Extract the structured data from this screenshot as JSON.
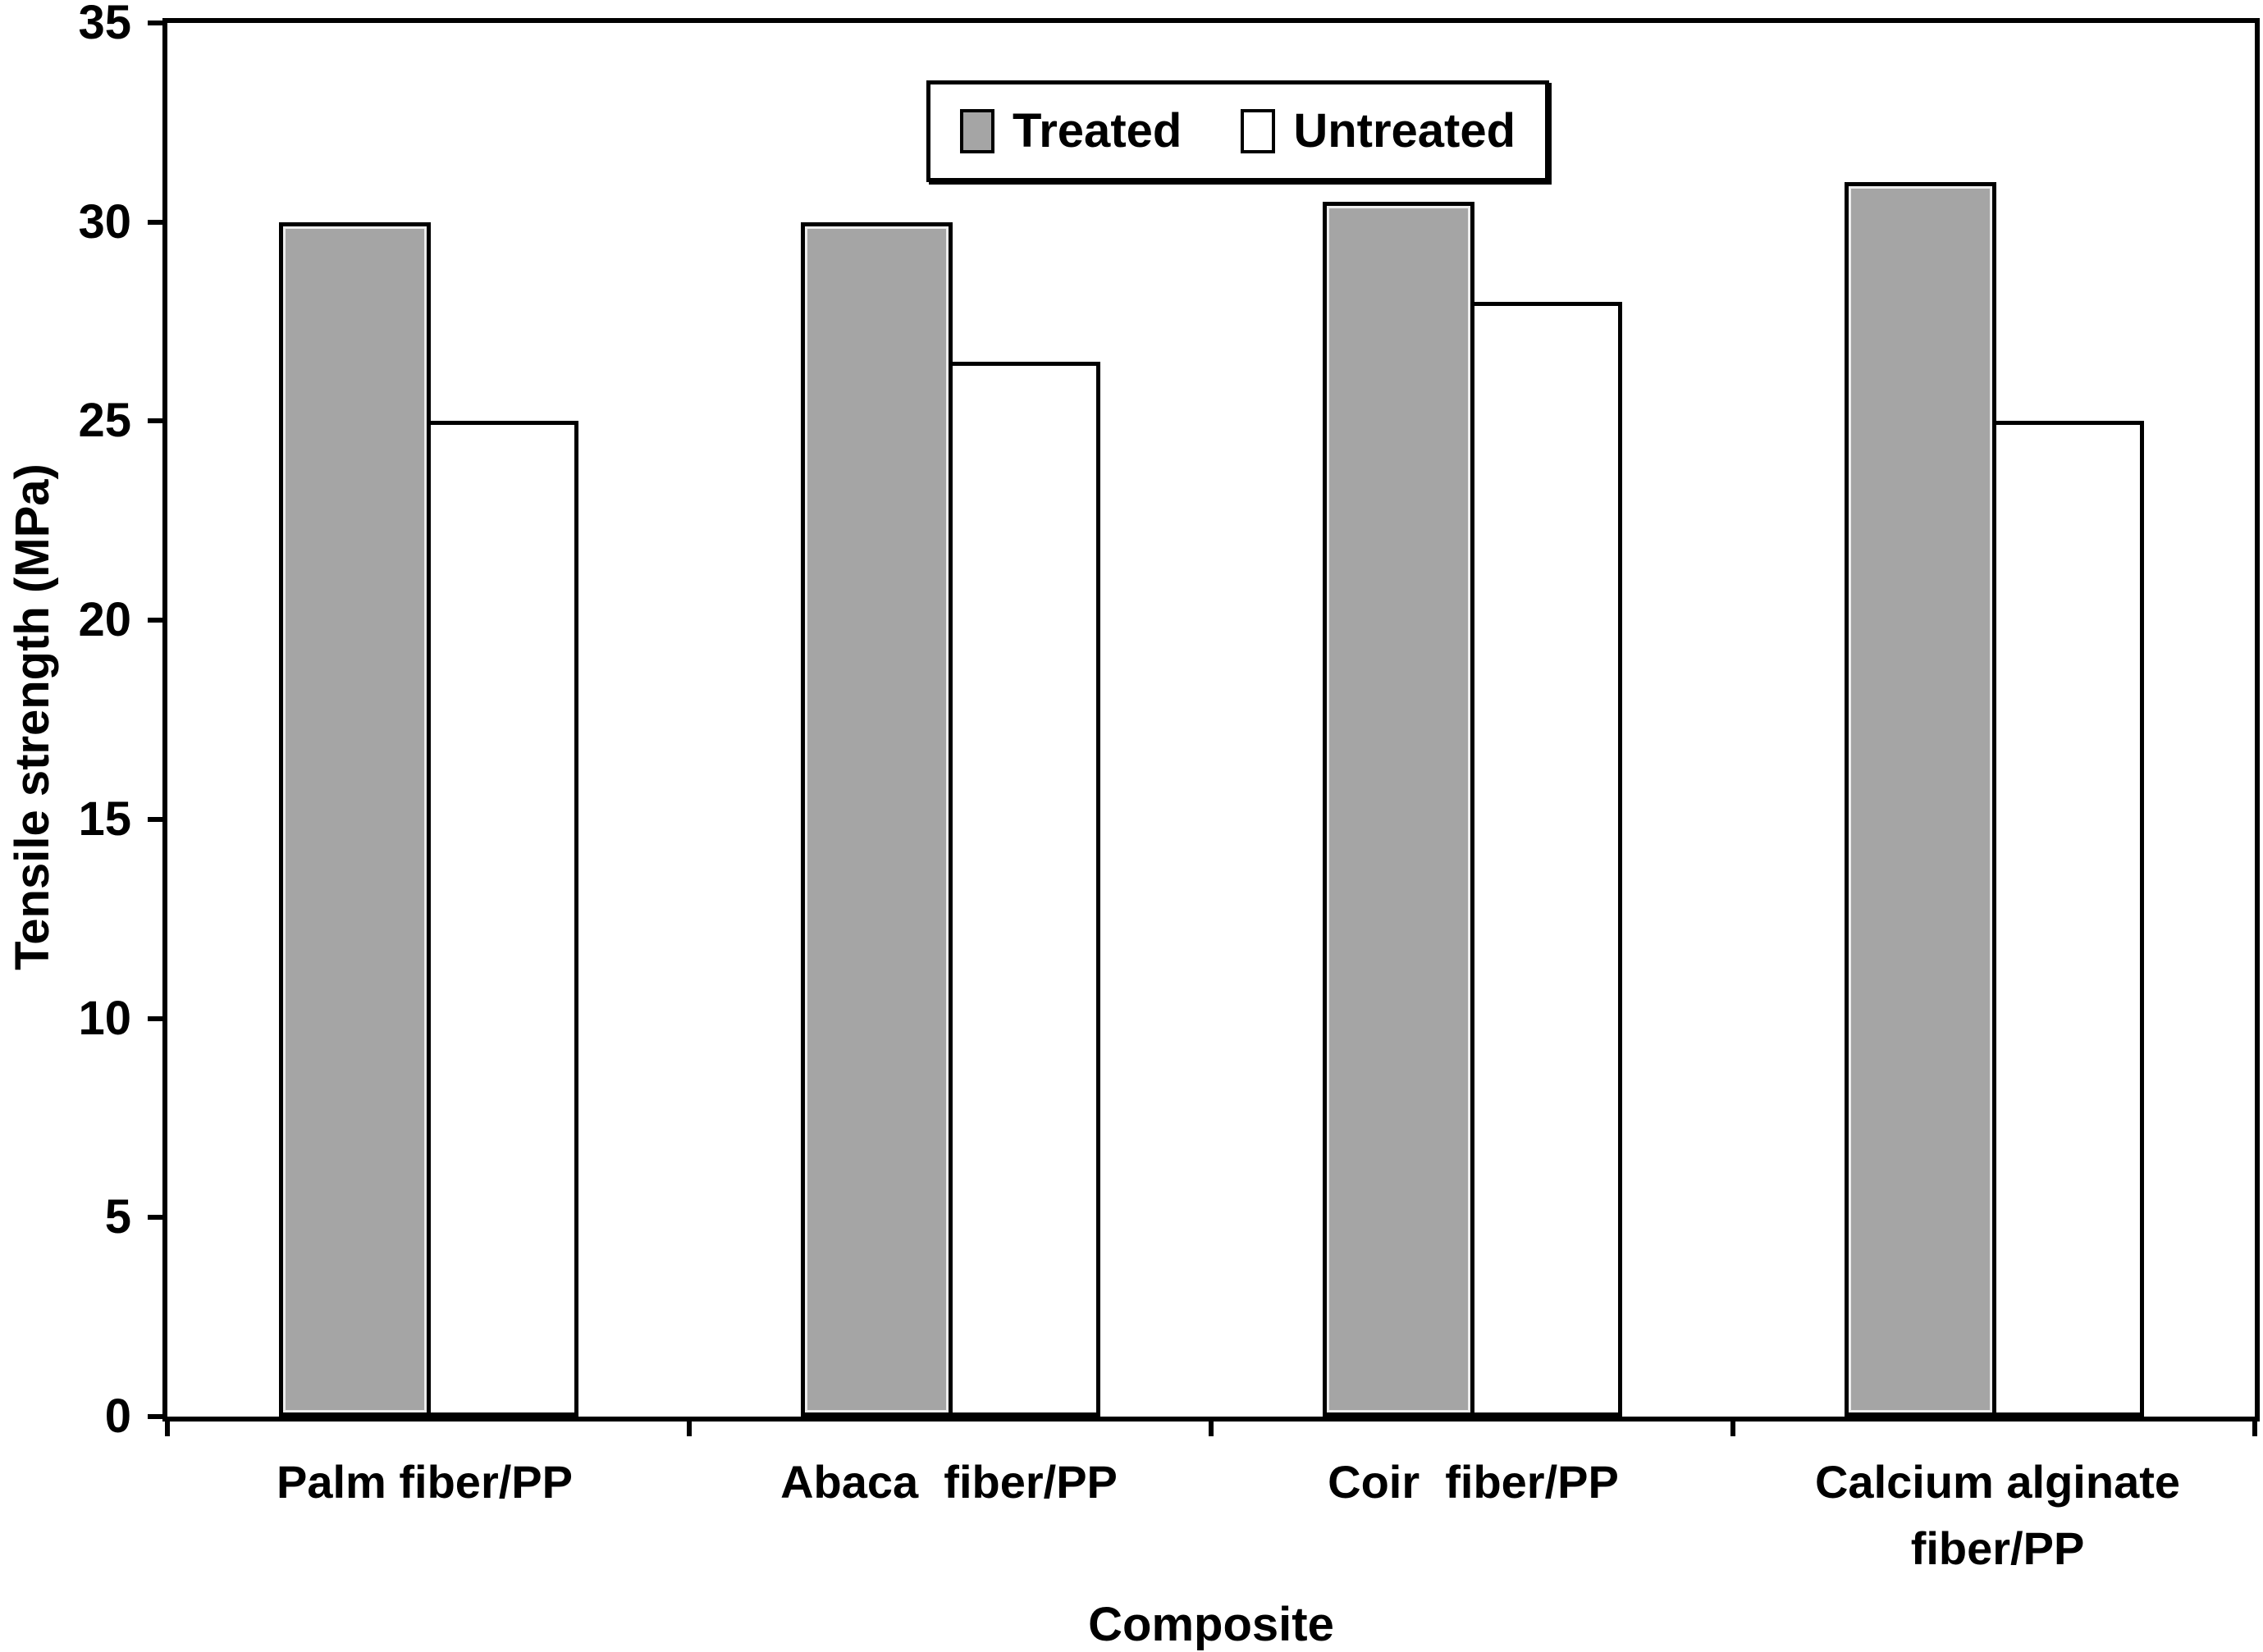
{
  "chart_data": {
    "type": "bar",
    "title": "",
    "categories": [
      "Palm fiber/PP",
      "Abaca  fiber/PP",
      "Coir  fiber/PP",
      "Calcium alginate\nfiber/PP"
    ],
    "series": [
      {
        "name": "Treated",
        "color": "#a5a5a5",
        "values": [
          30,
          30,
          30.5,
          31
        ]
      },
      {
        "name": "Untreated",
        "color": "#ffffff",
        "values": [
          25,
          26.5,
          28,
          25
        ]
      }
    ],
    "xlabel": "Composite",
    "ylabel": "Tensile strength (MPa)",
    "ylim": [
      0,
      35
    ],
    "yticks": [
      0,
      5,
      10,
      15,
      20,
      25,
      30,
      35
    ],
    "grid": false,
    "legend_position": "top-center",
    "legend_labels": [
      "Treated",
      "Untreated"
    ],
    "axis_color": "#000000",
    "text_color": "#000000",
    "background_color": "#ffffff"
  }
}
